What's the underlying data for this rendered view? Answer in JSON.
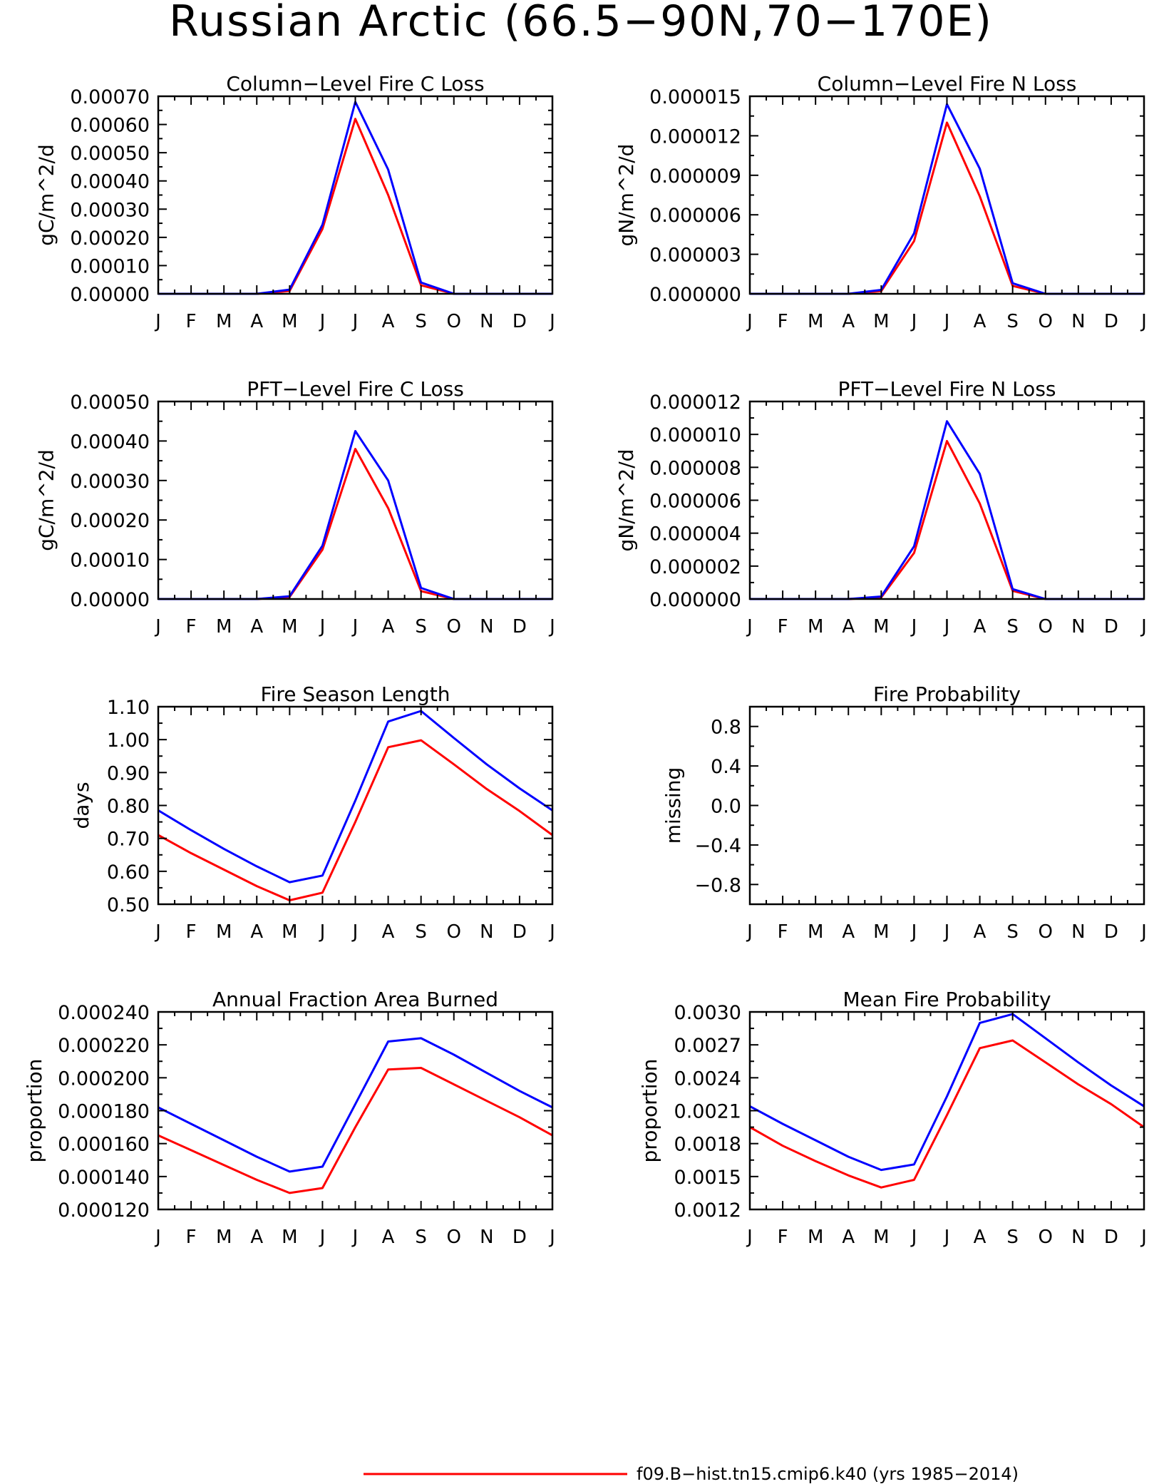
{
  "figure": {
    "title": "Russian Arctic (66.5−90N,70−170E)",
    "legend": [
      {
        "label": "f09.B−hist.tn15.cmip6.k40 (yrs 1985−2014)",
        "color": "#ff0000"
      }
    ]
  },
  "months": [
    "J",
    "F",
    "M",
    "A",
    "M",
    "J",
    "J",
    "A",
    "S",
    "O",
    "N",
    "D",
    "J"
  ],
  "colors": {
    "series_red": "#ff0000",
    "series_blue": "#0000ff",
    "axis": "#000000"
  },
  "chart_data": [
    {
      "type": "line",
      "title": "Column−Level Fire C Loss",
      "ylabel": "gC/m^2/d",
      "ylim": [
        0,
        0.0007
      ],
      "yticks": [
        0,
        0.0001,
        0.0002,
        0.0003,
        0.0004,
        0.0005,
        0.0006,
        0.0007
      ],
      "yticklabels": [
        "0.00000",
        "0.00010",
        "0.00020",
        "0.00030",
        "0.00040",
        "0.00050",
        "0.00060",
        "0.00070"
      ],
      "series": [
        {
          "color": "#ff0000",
          "values": [
            0,
            0,
            0,
            0,
            1e-05,
            0.00023,
            0.00062,
            0.00035,
            3e-05,
            0,
            0,
            0,
            0
          ]
        },
        {
          "color": "#0000ff",
          "values": [
            0,
            0,
            0,
            0,
            1.5e-05,
            0.000245,
            0.00068,
            0.00044,
            4e-05,
            0,
            0,
            0,
            0
          ]
        }
      ]
    },
    {
      "type": "line",
      "title": "Column−Level Fire N Loss",
      "ylabel": "gN/m^2/d",
      "ylim": [
        0,
        1.5e-05
      ],
      "yticks": [
        0,
        3e-06,
        6e-06,
        9e-06,
        1.2e-05,
        1.5e-05
      ],
      "yticklabels": [
        "0.000000",
        "0.000003",
        "0.000006",
        "0.000009",
        "0.000012",
        "0.000015"
      ],
      "series": [
        {
          "color": "#ff0000",
          "values": [
            0,
            0,
            0,
            0,
            2e-07,
            4e-06,
            1.3e-05,
            7.4e-06,
            6e-07,
            0,
            0,
            0,
            0
          ]
        },
        {
          "color": "#0000ff",
          "values": [
            0,
            0,
            0,
            0,
            3e-07,
            4.6e-06,
            1.44e-05,
            9.5e-06,
            8e-07,
            0,
            0,
            0,
            0
          ]
        }
      ]
    },
    {
      "type": "line",
      "title": "PFT−Level Fire C Loss",
      "ylabel": "gC/m^2/d",
      "ylim": [
        0,
        0.0005
      ],
      "yticks": [
        0,
        0.0001,
        0.0002,
        0.0003,
        0.0004,
        0.0005
      ],
      "yticklabels": [
        "0.00000",
        "0.00010",
        "0.00020",
        "0.00030",
        "0.00040",
        "0.00050"
      ],
      "series": [
        {
          "color": "#ff0000",
          "values": [
            0,
            0,
            0,
            0,
            5e-06,
            0.000125,
            0.00038,
            0.00023,
            2e-05,
            0,
            0,
            0,
            0
          ]
        },
        {
          "color": "#0000ff",
          "values": [
            0,
            0,
            0,
            0,
            7e-06,
            0.000135,
            0.000425,
            0.0003,
            2.8e-05,
            0,
            0,
            0,
            0
          ]
        }
      ]
    },
    {
      "type": "line",
      "title": "PFT−Level Fire N Loss",
      "ylabel": "gN/m^2/d",
      "ylim": [
        0,
        1.2e-05
      ],
      "yticks": [
        0,
        2e-06,
        4e-06,
        6e-06,
        8e-06,
        1e-05,
        1.2e-05
      ],
      "yticklabels": [
        "0.000000",
        "0.000002",
        "0.000004",
        "0.000006",
        "0.000008",
        "0.000010",
        "0.000012"
      ],
      "series": [
        {
          "color": "#ff0000",
          "values": [
            0,
            0,
            0,
            0,
            1e-07,
            2.8e-06,
            9.6e-06,
            5.8e-06,
            5e-07,
            0,
            0,
            0,
            0
          ]
        },
        {
          "color": "#0000ff",
          "values": [
            0,
            0,
            0,
            0,
            1.5e-07,
            3.2e-06,
            1.08e-05,
            7.6e-06,
            6e-07,
            0,
            0,
            0,
            0
          ]
        }
      ]
    },
    {
      "type": "line",
      "title": "Fire Season Length",
      "ylabel": "days",
      "ylim": [
        0.5,
        1.1
      ],
      "yticks": [
        0.5,
        0.6,
        0.7,
        0.8,
        0.9,
        1.0,
        1.1
      ],
      "yticklabels": [
        "0.50",
        "0.60",
        "0.70",
        "0.80",
        "0.90",
        "1.00",
        "1.10"
      ],
      "series": [
        {
          "color": "#ff0000",
          "values": [
            0.71,
            0.655,
            0.605,
            0.555,
            0.512,
            0.535,
            0.75,
            0.977,
            0.998,
            0.925,
            0.85,
            0.783,
            0.71
          ]
        },
        {
          "color": "#0000ff",
          "values": [
            0.785,
            0.725,
            0.668,
            0.615,
            0.567,
            0.587,
            0.815,
            1.055,
            1.087,
            1.005,
            0.925,
            0.852,
            0.785
          ]
        }
      ]
    },
    {
      "type": "line",
      "title": "Fire Probability",
      "ylabel": "missing",
      "ylim": [
        -1,
        1
      ],
      "yticks": [
        -0.8,
        -0.4,
        0.0,
        0.4,
        0.8
      ],
      "yticklabels": [
        "−0.8",
        "−0.4",
        "0.0",
        "0.4",
        "0.8"
      ],
      "series": []
    },
    {
      "type": "line",
      "title": "Annual Fraction Area Burned",
      "ylabel": "proportion",
      "ylim": [
        0.00012,
        0.00024
      ],
      "yticks": [
        0.00012,
        0.00014,
        0.00016,
        0.00018,
        0.0002,
        0.00022,
        0.00024
      ],
      "yticklabels": [
        "0.000120",
        "0.000140",
        "0.000160",
        "0.000180",
        "0.000200",
        "0.000220",
        "0.000240"
      ],
      "series": [
        {
          "color": "#ff0000",
          "values": [
            0.000165,
            0.000156,
            0.000147,
            0.000138,
            0.00013,
            0.000133,
            0.00017,
            0.000205,
            0.000206,
            0.000196,
            0.000186,
            0.000176,
            0.000165
          ]
        },
        {
          "color": "#0000ff",
          "values": [
            0.000182,
            0.000172,
            0.000162,
            0.000152,
            0.000143,
            0.000146,
            0.000184,
            0.000222,
            0.000224,
            0.000214,
            0.000203,
            0.000192,
            0.000182
          ]
        }
      ]
    },
    {
      "type": "line",
      "title": "Mean Fire Probability",
      "ylabel": "proportion",
      "ylim": [
        0.0012,
        0.003
      ],
      "yticks": [
        0.0012,
        0.0015,
        0.0018,
        0.0021,
        0.0024,
        0.0027,
        0.003
      ],
      "yticklabels": [
        "0.0012",
        "0.0015",
        "0.0018",
        "0.0021",
        "0.0024",
        "0.0027",
        "0.0030"
      ],
      "series": [
        {
          "color": "#ff0000",
          "values": [
            0.00195,
            0.00178,
            0.00164,
            0.00151,
            0.0014,
            0.00147,
            0.00206,
            0.00267,
            0.00274,
            0.00254,
            0.00234,
            0.00216,
            0.00195
          ]
        },
        {
          "color": "#0000ff",
          "values": [
            0.00214,
            0.00198,
            0.00183,
            0.00168,
            0.00156,
            0.00161,
            0.00223,
            0.0029,
            0.00298,
            0.00276,
            0.00254,
            0.00233,
            0.00214
          ]
        }
      ]
    }
  ]
}
